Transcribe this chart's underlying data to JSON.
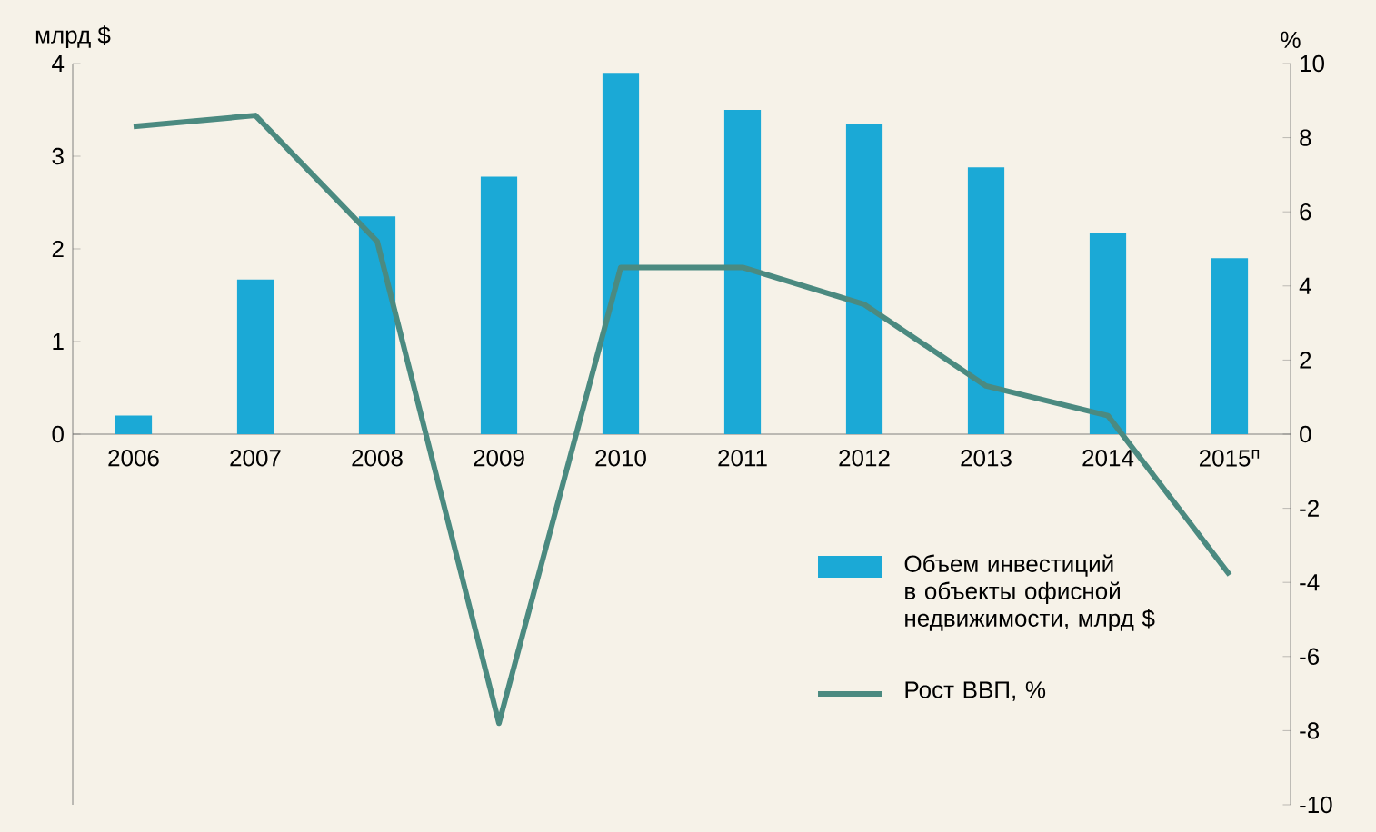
{
  "chart_data": {
    "type": "bar",
    "categories": [
      "2006",
      "2007",
      "2008",
      "2009",
      "2010",
      "2011",
      "2012",
      "2013",
      "2014",
      "2015$^{п}$"
    ],
    "ylabel": "млрд $",
    "y2label": "%",
    "ylim": [
      -4,
      4
    ],
    "yticks": [
      0,
      1,
      2,
      3,
      4
    ],
    "y2lim": [
      -10,
      10
    ],
    "y2ticks": [
      -10,
      -8,
      -6,
      -4,
      -2,
      0,
      2,
      4,
      6,
      8,
      10
    ],
    "legend": "bottom right",
    "marker": "none",
    "series": [
      {
        "name": "Объем инвестиций в объекты офисной недвижимости, млрд $",
        "color": "#1ba9d6",
        "values": [
          0.2,
          1.67,
          2.35,
          2.78,
          3.9,
          3.5,
          3.35,
          2.88,
          2.17,
          1.9
        ]
      },
      {
        "name": "Рост ВВП, %",
        "type": "line",
        "axis": "y2",
        "color": "#4b8a80",
        "values": [
          8.3,
          8.6,
          5.2,
          -7.8,
          4.5,
          4.5,
          3.5,
          1.3,
          0.5,
          -3.8
        ]
      }
    ]
  }
}
